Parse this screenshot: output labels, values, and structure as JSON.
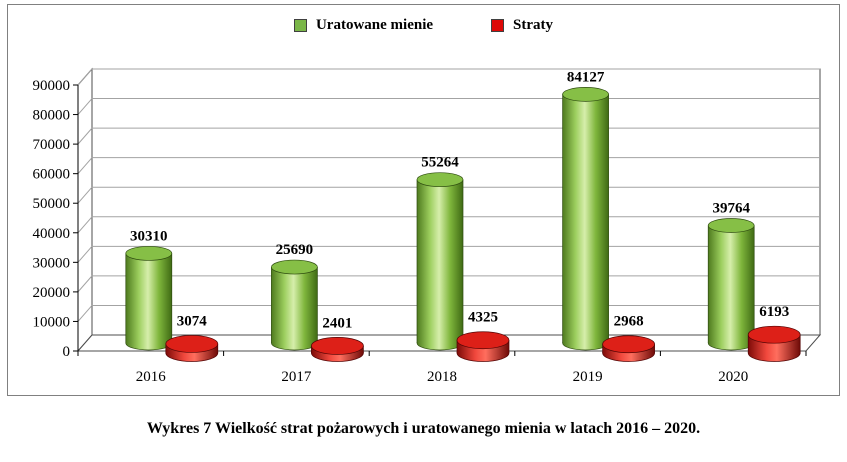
{
  "chart_data": {
    "type": "bar",
    "style": "3d-cylinder",
    "categories": [
      "2016",
      "2017",
      "2018",
      "2019",
      "2020"
    ],
    "series": [
      {
        "name": "Uratowane mienie",
        "color": "#7AB648",
        "values": [
          30310,
          25690,
          55264,
          84127,
          39764
        ]
      },
      {
        "name": "Straty",
        "color": "#DD0806",
        "values": [
          3074,
          2401,
          4325,
          2968,
          6193
        ]
      }
    ],
    "title": "",
    "xlabel": "",
    "ylabel": "",
    "ylim": [
      0,
      90000
    ],
    "ytick_step": 10000,
    "ytick_labels": [
      "0",
      "10000",
      "20000",
      "30000",
      "40000",
      "50000",
      "60000",
      "70000",
      "80000",
      "90000"
    ],
    "grid": true,
    "legend_position": "top"
  },
  "caption": "Wykres 7 Wielkość strat pożarowych i uratowanego mienia w latach 2016 – 2020.",
  "colors": {
    "green": "#7AB648",
    "red": "#DD0806",
    "gridline": "#A3A3A3",
    "wall_edge": "#4D4D4D",
    "axis": "#000000"
  }
}
